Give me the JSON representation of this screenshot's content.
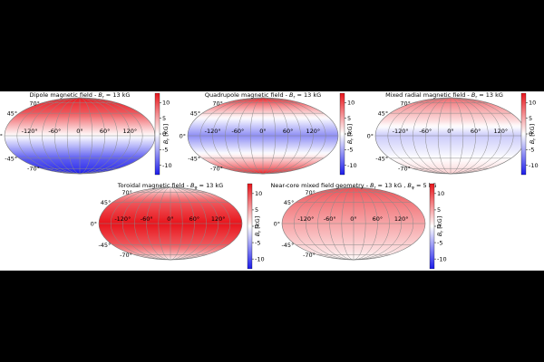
{
  "figure": {
    "colorbar_ticks": [
      "10",
      "5",
      "0",
      "-5",
      "-10"
    ],
    "colorbar_colors": {
      "positive": "#e8141b",
      "zero": "#ffffff",
      "negative": "#1c1cea"
    },
    "longitude_labels": [
      "-120°",
      "-60°",
      "0°",
      "60°",
      "120°"
    ],
    "latitude_labels": {
      "north70": "70°",
      "north45": "45°",
      "equator": "0°",
      "south45": "-45°",
      "south70": "-70°"
    }
  },
  "chart_data": [
    {
      "type": "heatmap",
      "title": "Dipole magnetic field - B_r = 13 kG",
      "title_parts": {
        "main": "Dipole magnetic field - ",
        "sym": "B",
        "sub": "r",
        "rest": " = 13 kG"
      },
      "cbar_label": {
        "sym": "B",
        "sub": "r",
        "unit": " [kG]"
      },
      "projection": "mollweide",
      "profile": "dipole",
      "value_range": [
        -13,
        13
      ],
      "value_by_latitude": [
        [
          90,
          13
        ],
        [
          45,
          9.2
        ],
        [
          0,
          0
        ],
        [
          -45,
          -9.2
        ],
        [
          -90,
          -13
        ]
      ]
    },
    {
      "type": "heatmap",
      "title": "Quadrupole magnetic field - B_r = 13 kG",
      "title_parts": {
        "main": "Quadrupole magnetic field - ",
        "sym": "B",
        "sub": "r",
        "rest": " = 13 kG"
      },
      "cbar_label": {
        "sym": "B",
        "sub": "r",
        "unit": " [kG]"
      },
      "projection": "mollweide",
      "profile": "quadrupole",
      "value_range": [
        -13,
        13
      ],
      "value_by_latitude": [
        [
          90,
          13
        ],
        [
          35.3,
          0
        ],
        [
          0,
          -6.5
        ],
        [
          -35.3,
          0
        ],
        [
          -90,
          13
        ]
      ]
    },
    {
      "type": "heatmap",
      "title": "Mixed radial magnetic field - B_r = 13 kG",
      "title_parts": {
        "main": "Mixed radial magnetic field - ",
        "sym": "B",
        "sub": "r",
        "rest": " = 13 kG"
      },
      "cbar_label": {
        "sym": "B",
        "sub": "r",
        "unit": " [kG]"
      },
      "projection": "mollweide",
      "profile": "mixed",
      "value_range": [
        -13,
        13
      ],
      "value_by_latitude": [
        [
          90,
          9
        ],
        [
          30,
          2
        ],
        [
          0,
          -3
        ],
        [
          -30,
          -1
        ],
        [
          -90,
          3
        ]
      ]
    },
    {
      "type": "heatmap",
      "title": "Toroidal magnetic field - B_φ = 13 kG",
      "title_parts": {
        "main": "Toroidal magnetic field - ",
        "sym": "B",
        "sub": "φ",
        "rest": " = 13 kG"
      },
      "cbar_label": {
        "sym": "B",
        "sub": "r",
        "unit": " [kG]"
      },
      "projection": "mollweide",
      "profile": "toroidal",
      "value_range": [
        -13,
        13
      ],
      "value_by_latitude": [
        [
          90,
          0
        ],
        [
          45,
          9.2
        ],
        [
          0,
          13
        ],
        [
          -45,
          9.2
        ],
        [
          -90,
          0
        ]
      ]
    },
    {
      "type": "heatmap",
      "title": "Near-core mixed field geometry - B_r = 13 kG , B_φ = 5 kG",
      "title_parts": {
        "main": "Near-core mixed field geometry - ",
        "sym": "B",
        "sub": "r",
        "rest": " = 13 kG ,",
        "sym2": "B",
        "sub2": "φ",
        "rest2": " = 5 kG"
      },
      "cbar_label": {
        "sym": "B",
        "sub": "r",
        "unit": " [kG]"
      },
      "projection": "mollweide",
      "profile": "nearcore",
      "value_range": [
        -13,
        13
      ],
      "value_by_latitude": [
        [
          90,
          10
        ],
        [
          0,
          5
        ],
        [
          -90,
          0
        ]
      ]
    }
  ]
}
